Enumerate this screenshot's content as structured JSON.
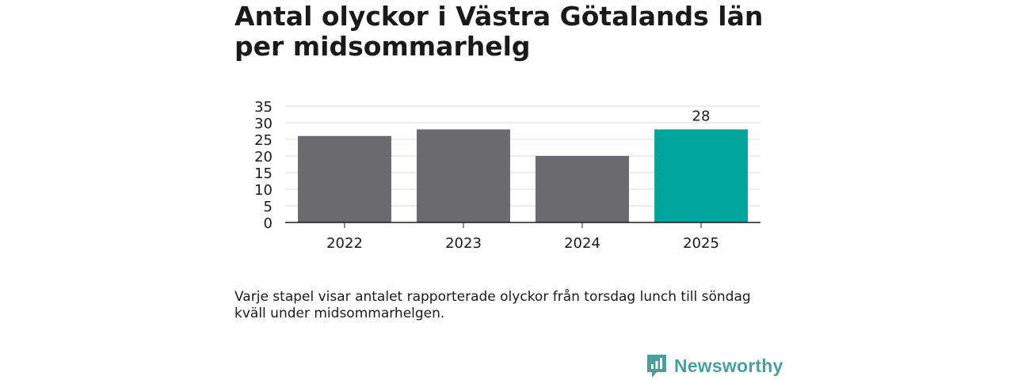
{
  "chart_data": {
    "type": "bar",
    "title": "Antal olyckor i Västra Götalands län per midsommarhelg",
    "categories": [
      "2022",
      "2023",
      "2024",
      "2025"
    ],
    "values": [
      26,
      28,
      20,
      28
    ],
    "colors": [
      "#6c6b70",
      "#6c6b70",
      "#6c6b70",
      "#00a59a"
    ],
    "data_labels": [
      "",
      "",
      "",
      "28"
    ],
    "yticks": [
      "0",
      "5",
      "10",
      "15",
      "20",
      "25",
      "30",
      "35"
    ],
    "ylim": [
      0,
      35
    ],
    "grid": true,
    "xlabel": "",
    "ylabel": ""
  },
  "note": "Varje stapel visar antalet rapporterade olyckor från torsdag lunch till söndag kväll under midsommarhelgen.",
  "brand": {
    "name": "Newsworthy",
    "color": "#4c9f98",
    "icon": "newsworthy-logo-icon"
  }
}
